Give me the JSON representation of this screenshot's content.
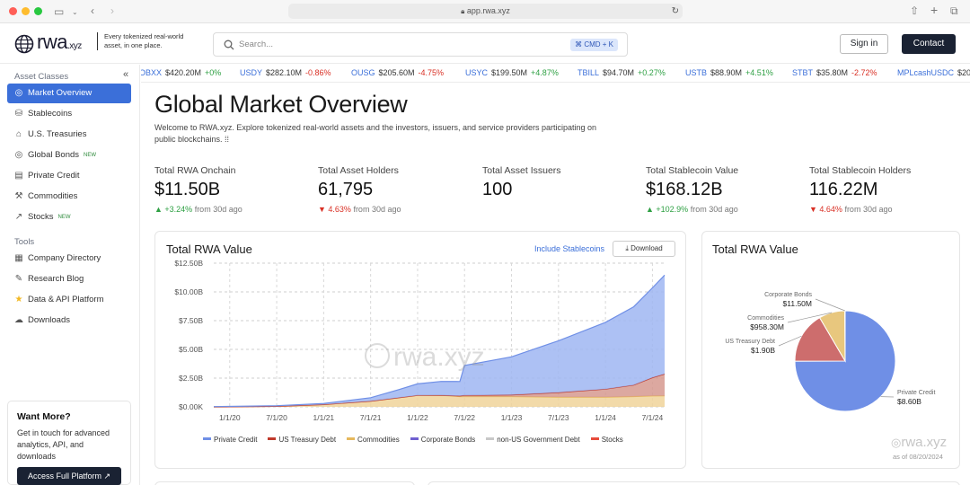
{
  "browser": {
    "url": "app.rwa.xyz"
  },
  "header": {
    "logo": "rwa.xyz",
    "logo_main": "rwa",
    "logo_suffix": ".xyz",
    "tagline": "Every tokenized real-world asset, in one place.",
    "search_placeholder": "Search...",
    "search_shortcut": "⌘ CMD + K",
    "signin_label": "Sign in",
    "contact_label": "Contact"
  },
  "sidebar": {
    "section1": "Asset Classes",
    "asset_items": [
      {
        "label": "Market Overview",
        "icon": "globe-icon",
        "active": true
      },
      {
        "label": "Stablecoins",
        "icon": "coins-icon"
      },
      {
        "label": "U.S. Treasuries",
        "icon": "bank-icon"
      },
      {
        "label": "Global Bonds",
        "icon": "globe-icon",
        "badge": "NEW"
      },
      {
        "label": "Private Credit",
        "icon": "document-icon"
      },
      {
        "label": "Commodities",
        "icon": "commodity-icon"
      },
      {
        "label": "Stocks",
        "icon": "chart-icon",
        "badge": "NEW"
      }
    ],
    "section2": "Tools",
    "tool_items": [
      {
        "label": "Company Directory",
        "icon": "building-icon"
      },
      {
        "label": "Research Blog",
        "icon": "pen-icon"
      },
      {
        "label": "Data & API Platform",
        "icon": "star-icon"
      },
      {
        "label": "Downloads",
        "icon": "cloud-download-icon"
      }
    ],
    "promo": {
      "title": "Want More?",
      "text": "Get in touch for advanced analytics, API, and downloads",
      "button": "Access Full Platform ↗"
    }
  },
  "ticker": [
    {
      "sym": "OBXX",
      "val": "$420.20M",
      "chg": "+0%",
      "dir": "pos"
    },
    {
      "sym": "USDY",
      "val": "$282.10M",
      "chg": "-0.86%",
      "dir": "neg"
    },
    {
      "sym": "OUSG",
      "val": "$205.60M",
      "chg": "-4.75%",
      "dir": "neg"
    },
    {
      "sym": "USYC",
      "val": "$199.50M",
      "chg": "+4.87%",
      "dir": "pos"
    },
    {
      "sym": "TBILL",
      "val": "$94.70M",
      "chg": "+0.27%",
      "dir": "pos"
    },
    {
      "sym": "USTB",
      "val": "$88.90M",
      "chg": "+4.51%",
      "dir": "pos"
    },
    {
      "sym": "STBT",
      "val": "$35.80M",
      "chg": "-2.72%",
      "dir": "neg"
    },
    {
      "sym": "MPLcashUSDC",
      "val": "$20",
      "chg": "",
      "dir": "pos"
    }
  ],
  "main": {
    "title": "Global Market Overview",
    "intro": "Welcome to RWA.xyz. Explore tokenized real-world assets and the investors, issuers, and service providers participating on public blockchains. ⁞⁞",
    "stats": [
      {
        "label": "Total RWA Onchain",
        "value": "$11.50B",
        "change": "▲ +3.24%",
        "dir": "pos",
        "suffix": " from 30d ago"
      },
      {
        "label": "Total Asset Holders",
        "value": "61,795",
        "change": "▼ 4.63%",
        "dir": "neg",
        "suffix": " from 30d ago"
      },
      {
        "label": "Total Asset Issuers",
        "value": "100",
        "change": "",
        "dir": "pos",
        "suffix": ""
      },
      {
        "label": "Total Stablecoin Value",
        "value": "$168.12B",
        "change": "▲ +102.9%",
        "dir": "pos",
        "suffix": " from 30d ago"
      },
      {
        "label": "Total Stablecoin Holders",
        "value": "116.22M",
        "change": "▼ 4.64%",
        "dir": "neg",
        "suffix": " from 30d ago"
      }
    ],
    "area_card": {
      "title": "Total RWA Value",
      "include_link": "Include Stablecoins",
      "download_label": "Download",
      "watermark": "rwa.xyz"
    },
    "pie_card": {
      "title": "Total RWA Value",
      "footer": "as of 08/20/2024",
      "watermark": "rwa.xyz"
    }
  },
  "colors": {
    "private_credit": "#6f8fe6",
    "us_treasury": "#c0392b",
    "commodities": "#e6b85c",
    "corporate_bonds": "#6f5fd0",
    "non_us_gov": "#c8c8c8",
    "stocks": "#e74c3c",
    "accent": "#3b6fd9"
  },
  "chart_data": [
    {
      "type": "area",
      "title": "Total RWA Value",
      "stacked": true,
      "x_labels": [
        "1/1/20",
        "7/1/20",
        "1/1/21",
        "7/1/21",
        "1/1/22",
        "7/1/22",
        "1/1/23",
        "7/1/23",
        "1/1/24",
        "7/1/24"
      ],
      "y_ticks": [
        "$0.00K",
        "$2.50B",
        "$5.00B",
        "$7.50B",
        "$10.00B",
        "$12.50B"
      ],
      "ylim": [
        0,
        12.5
      ],
      "x_range": [
        2019.83,
        2024.63
      ],
      "x": [
        2019.83,
        2020.5,
        2021.0,
        2021.5,
        2021.8,
        2022.0,
        2022.25,
        2022.45,
        2022.5,
        2023.0,
        2023.5,
        2024.0,
        2024.3,
        2024.5,
        2024.63
      ],
      "series": [
        {
          "name": "Private Credit",
          "color": "#6f8fe6",
          "values": [
            0.02,
            0.05,
            0.1,
            0.3,
            0.7,
            1.0,
            1.2,
            1.25,
            2.6,
            3.3,
            4.5,
            5.8,
            6.8,
            7.8,
            8.6
          ]
        },
        {
          "name": "US Treasury Debt",
          "color": "#c0392b",
          "values": [
            0,
            0,
            0,
            0,
            0,
            0,
            0.01,
            0.05,
            0.1,
            0.15,
            0.4,
            0.7,
            1.0,
            1.6,
            1.9
          ]
        },
        {
          "name": "Commodities",
          "color": "#e6b85c",
          "values": [
            0,
            0.05,
            0.2,
            0.5,
            0.8,
            1.0,
            1.0,
            0.9,
            0.9,
            0.9,
            0.85,
            0.85,
            0.9,
            0.95,
            0.96
          ]
        },
        {
          "name": "Corporate Bonds",
          "color": "#6f5fd0",
          "values": [
            0,
            0,
            0,
            0,
            0,
            0,
            0,
            0,
            0,
            0,
            0,
            0,
            0,
            0,
            0
          ]
        },
        {
          "name": "non-US Government Debt",
          "color": "#c8c8c8",
          "values": [
            0,
            0,
            0,
            0,
            0,
            0,
            0,
            0,
            0,
            0,
            0,
            0,
            0,
            0,
            0
          ]
        },
        {
          "name": "Stocks",
          "color": "#e74c3c",
          "values": [
            0,
            0,
            0,
            0,
            0,
            0,
            0,
            0,
            0,
            0,
            0,
            0,
            0,
            0,
            0
          ]
        }
      ]
    },
    {
      "type": "pie",
      "title": "Total RWA Value",
      "slices": [
        {
          "label": "Private Credit",
          "value": 8.6,
          "display": "$8.60B",
          "color": "#6f8fe6"
        },
        {
          "label": "US Treasury Debt",
          "value": 1.9,
          "display": "$1.90B",
          "color": "#cd6d6d"
        },
        {
          "label": "Commodities",
          "value": 0.9583,
          "display": "$958.30M",
          "color": "#e8c77e"
        },
        {
          "label": "Corporate Bonds",
          "value": 0.0115,
          "display": "$11.50M",
          "color": "#6f5fd0"
        }
      ]
    }
  ]
}
